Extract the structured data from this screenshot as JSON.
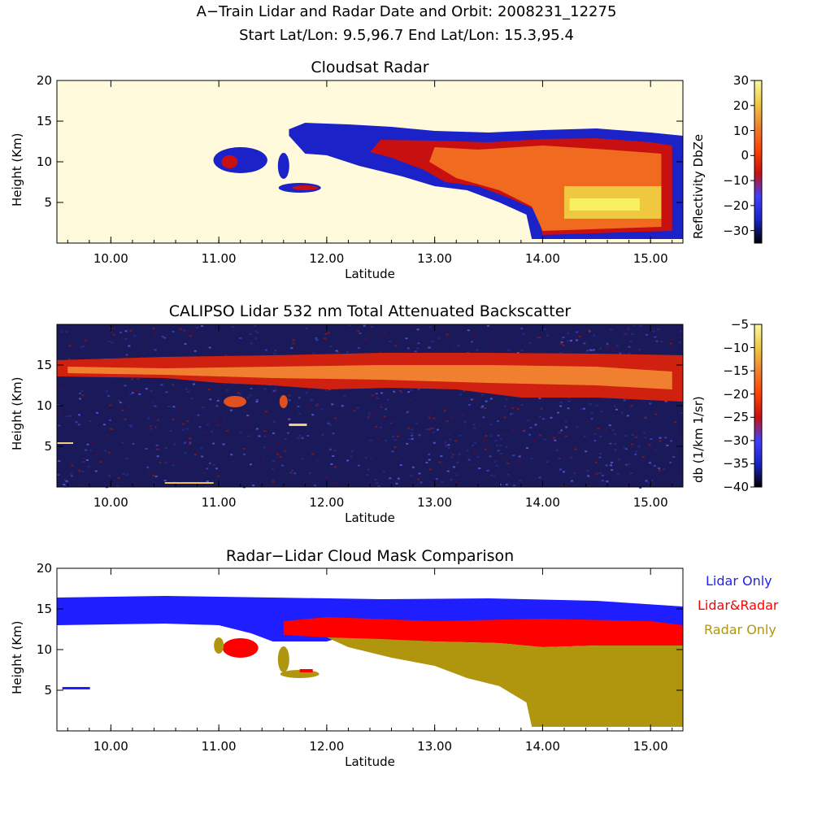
{
  "header": {
    "line1": "A−Train Lidar and Radar    Date and Orbit: 2008231_12275",
    "line2": "Start Lat/Lon: 9.5,96.7 End Lat/Lon: 15.3,95.4"
  },
  "colors": {
    "radar_background": "#fffadc",
    "lidar_only": "#1e1eff",
    "lidar_and_radar": "#ff0000",
    "radar_only": "#b0960f"
  },
  "chart_data": [
    {
      "type": "heatmap",
      "title": "Cloudsat Radar",
      "xlabel": "Latitude",
      "ylabel": "Height (Km)",
      "x_ticks": [
        "10.00",
        "11.00",
        "12.00",
        "13.00",
        "14.00",
        "15.00"
      ],
      "y_ticks": [
        "5",
        "10",
        "15",
        "20"
      ],
      "xlim": [
        9.5,
        15.3
      ],
      "ylim": [
        0,
        20
      ],
      "colorbar": {
        "label": "Reflectivity DbZe",
        "ticks": [
          "30",
          "20",
          "10",
          "0",
          "−10",
          "−20",
          "−30"
        ],
        "range": [
          -35,
          30
        ]
      },
      "cloud_features": [
        {
          "lat_range": [
            10.95,
            11.45
          ],
          "height_range": [
            8.5,
            12.0
          ]
        },
        {
          "lat_range": [
            11.55,
            11.65
          ],
          "height_range": [
            8.0,
            11.0
          ]
        },
        {
          "lat_range": [
            11.55,
            11.9
          ],
          "height_range": [
            6.0,
            7.5
          ]
        },
        {
          "lat_range": [
            11.65,
            15.3
          ],
          "height_range": [
            0.5,
            15.0
          ]
        }
      ]
    },
    {
      "type": "heatmap",
      "title": "CALIPSO Lidar 532 nm Total Attenuated Backscatter",
      "xlabel": "Latitude",
      "ylabel": "Height (Km)",
      "x_ticks": [
        "10.00",
        "11.00",
        "12.00",
        "13.00",
        "14.00",
        "15.00"
      ],
      "y_ticks": [
        "5",
        "10",
        "15"
      ],
      "xlim": [
        9.5,
        15.3
      ],
      "ylim": [
        0,
        20
      ],
      "colorbar": {
        "label": "db (1/km 1/sr)",
        "ticks": [
          "−5",
          "−10",
          "−15",
          "−20",
          "−25",
          "−30",
          "−35",
          "−40"
        ],
        "range": [
          -40,
          -5
        ]
      }
    },
    {
      "type": "heatmap",
      "title": "Radar−Lidar Cloud Mask Comparison",
      "xlabel": "Latitude",
      "ylabel": "Height (Km)",
      "x_ticks": [
        "10.00",
        "11.00",
        "12.00",
        "13.00",
        "14.00",
        "15.00"
      ],
      "y_ticks": [
        "5",
        "10",
        "15",
        "20"
      ],
      "xlim": [
        9.5,
        15.3
      ],
      "ylim": [
        0,
        20
      ],
      "legend": {
        "position": "right",
        "items": [
          "Lidar Only",
          "Lidar&Radar",
          "Radar Only"
        ]
      }
    }
  ]
}
